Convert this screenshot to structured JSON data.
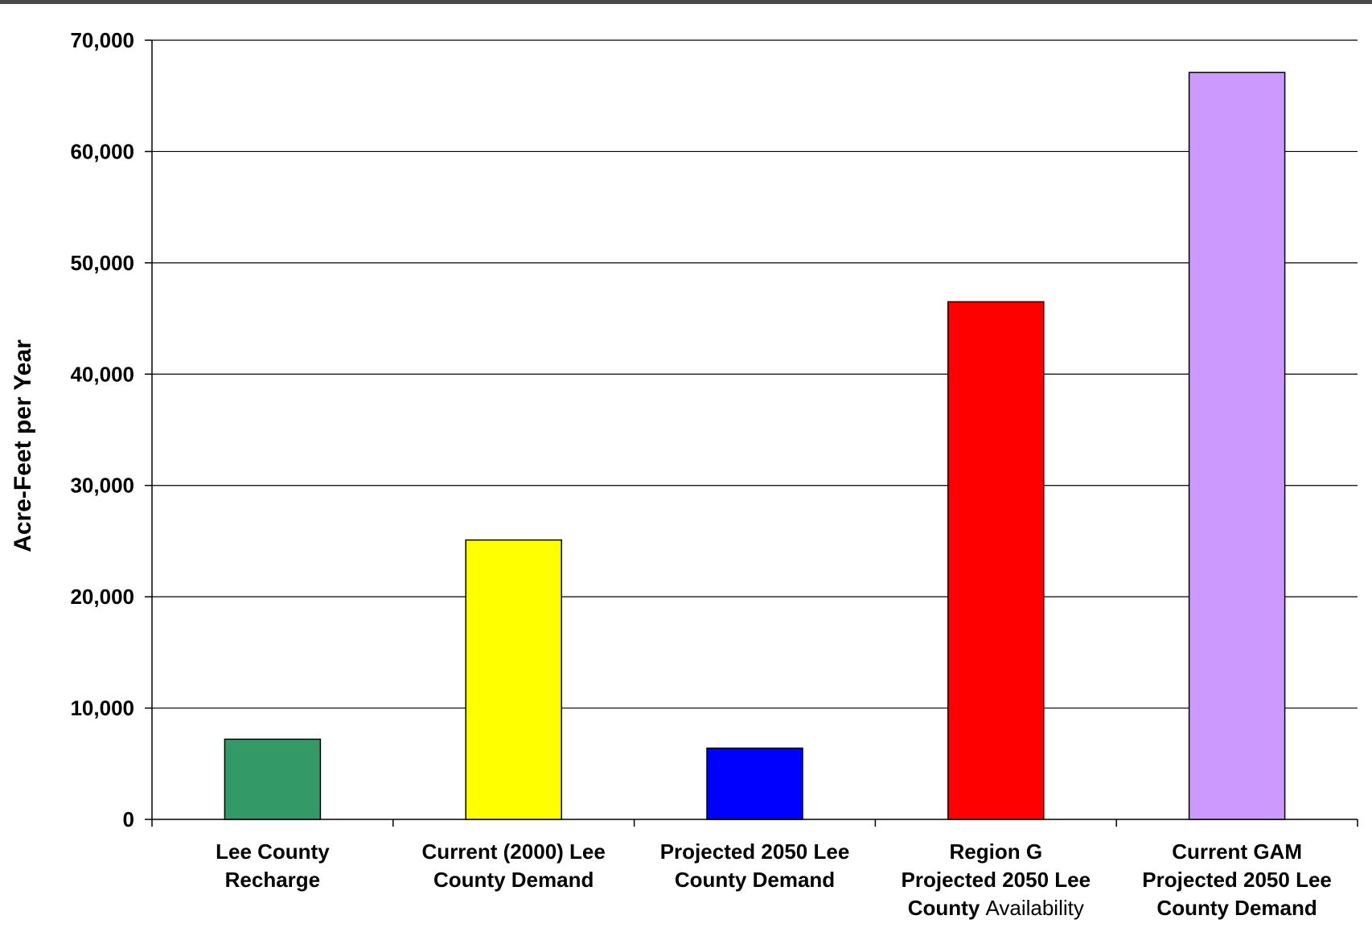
{
  "chart_data": {
    "type": "bar",
    "title": "",
    "xlabel": "",
    "ylabel": "Acre-Feet per Year",
    "ylim": [
      0,
      70000
    ],
    "yticks": [
      0,
      10000,
      20000,
      30000,
      40000,
      50000,
      60000,
      70000
    ],
    "ytick_labels": [
      "0",
      "10,000",
      "20,000",
      "30,000",
      "40,000",
      "50,000",
      "60,000",
      "70,000"
    ],
    "grid": true,
    "legend": "none",
    "categories": [
      "Lee County Recharge",
      "Current (2000) Lee County Demand",
      "Projected 2050 Lee County Demand",
      "Region G Projected 2050 Lee County Availability",
      "Current GAM Projected 2050 Lee County Demand"
    ],
    "category_label_lines": [
      [
        [
          "Lee County"
        ],
        [
          "Recharge"
        ]
      ],
      [
        [
          "Current (2000) Lee"
        ],
        [
          "County Demand"
        ]
      ],
      [
        [
          "Projected 2050 Lee"
        ],
        [
          "County Demand"
        ]
      ],
      [
        [
          "Region G"
        ],
        [
          "Projected 2050 Lee"
        ],
        [
          "County ",
          "Availability"
        ]
      ],
      [
        [
          "Current GAM"
        ],
        [
          "Projected 2050 Lee"
        ],
        [
          "County Demand"
        ]
      ]
    ],
    "values": [
      7200,
      25100,
      6400,
      46500,
      67100
    ],
    "colors": [
      "#339966",
      "#ffff00",
      "#0000ff",
      "#ff0000",
      "#cc99ff"
    ]
  }
}
